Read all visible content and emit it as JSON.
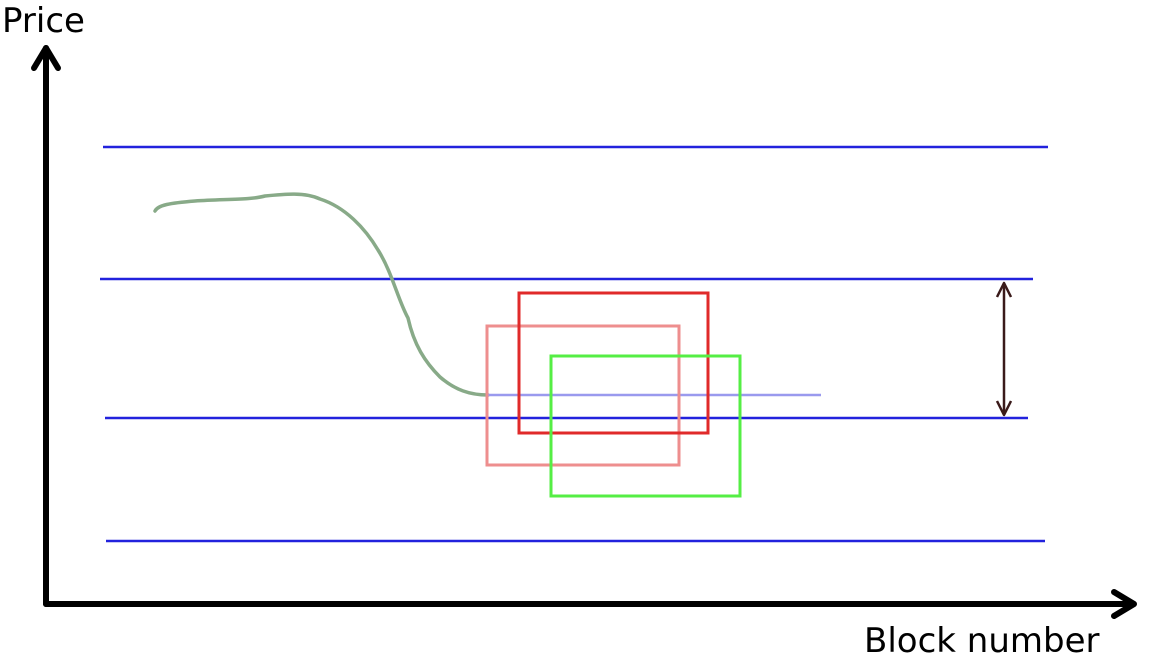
{
  "axes": {
    "y_label": "Price",
    "x_label": "Block number"
  },
  "colors": {
    "axis": "#000000",
    "level_line": "#2222dd",
    "price_curve": "#88aa88",
    "target_line": "#9a9aee",
    "box_red": "#e02a2a",
    "box_pink": "#ee8e8e",
    "box_green": "#55ee44",
    "range_arrow": "#3a1a1a"
  }
}
